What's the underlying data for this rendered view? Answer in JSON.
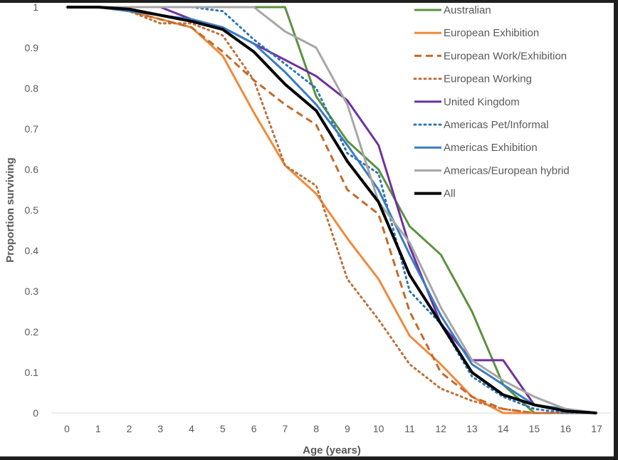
{
  "chart_data": {
    "type": "line",
    "title": "",
    "xlabel": "Age (years)",
    "ylabel": "Proportion surviving",
    "xlim": [
      0,
      17
    ],
    "ylim": [
      0,
      1
    ],
    "x": [
      0,
      1,
      2,
      3,
      4,
      5,
      6,
      7,
      8,
      9,
      10,
      11,
      12,
      13,
      14,
      15,
      16,
      17
    ],
    "x_ticks": [
      "0",
      "1",
      "2",
      "3",
      "4",
      "5",
      "6",
      "7",
      "8",
      "9",
      "10",
      "11",
      "12",
      "13",
      "14",
      "15",
      "16",
      "17"
    ],
    "y_ticks": [
      "0",
      "0.1",
      "0.2",
      "0.3",
      "0.4",
      "0.5",
      "0.6",
      "0.7",
      "0.8",
      "0.9",
      "1"
    ],
    "grid": false,
    "legend_position": "top-right",
    "series": [
      {
        "name": "Australian",
        "color": "#5b9240",
        "style": "solid",
        "values": [
          1,
          1,
          1,
          1,
          1,
          1,
          1,
          1,
          0.78,
          0.67,
          0.6,
          0.46,
          0.39,
          0.25,
          0.07,
          0,
          0,
          0
        ]
      },
      {
        "name": "European Exhibition",
        "color": "#f08a3c",
        "style": "solid",
        "values": [
          1,
          1,
          0.99,
          0.97,
          0.95,
          0.88,
          0.74,
          0.61,
          0.54,
          0.43,
          0.33,
          0.19,
          0.12,
          0.04,
          0,
          0,
          0,
          0
        ]
      },
      {
        "name": "European Work/Exhibition",
        "color": "#c46a2a",
        "style": "dashed",
        "values": [
          1,
          1,
          0.99,
          0.97,
          0.95,
          0.89,
          0.82,
          0.76,
          0.71,
          0.55,
          0.49,
          0.25,
          0.1,
          0.04,
          0.01,
          0,
          0,
          0
        ]
      },
      {
        "name": "European Working",
        "color": "#c0703a",
        "style": "dotted",
        "values": [
          1,
          1,
          0.99,
          0.96,
          0.96,
          0.93,
          0.82,
          0.61,
          0.56,
          0.33,
          0.23,
          0.12,
          0.06,
          0.03,
          0.01,
          0,
          0,
          0
        ]
      },
      {
        "name": "United Kingdom",
        "color": "#7030a0",
        "style": "solid",
        "values": [
          1,
          1,
          1,
          1,
          0.97,
          0.95,
          0.91,
          0.87,
          0.83,
          0.77,
          0.66,
          0.41,
          0.22,
          0.13,
          0.13,
          0.02,
          0.01,
          0
        ]
      },
      {
        "name": "Americas Pet/Informal",
        "color": "#2e75b6",
        "style": "dotted",
        "values": [
          1,
          1,
          1,
          1,
          1,
          0.99,
          0.92,
          0.86,
          0.8,
          0.64,
          0.59,
          0.3,
          0.22,
          0.09,
          0.04,
          0.01,
          0,
          0
        ]
      },
      {
        "name": "Americas Exhibition",
        "color": "#3a7dc0",
        "style": "solid",
        "values": [
          1,
          1,
          0.99,
          0.98,
          0.97,
          0.95,
          0.91,
          0.84,
          0.76,
          0.66,
          0.55,
          0.39,
          0.24,
          0.12,
          0.07,
          0.02,
          0.01,
          0
        ]
      },
      {
        "name": "Americas/European hybrid",
        "color": "#a6a6a6",
        "style": "solid",
        "values": [
          1,
          1,
          1,
          1,
          1,
          1,
          1,
          0.94,
          0.9,
          0.76,
          0.52,
          0.42,
          0.26,
          0.13,
          0.08,
          0.04,
          0.01,
          0
        ]
      },
      {
        "name": "All",
        "color": "#000000",
        "style": "solid",
        "values": [
          1,
          1,
          0.995,
          0.98,
          0.965,
          0.945,
          0.89,
          0.81,
          0.745,
          0.62,
          0.52,
          0.34,
          0.22,
          0.1,
          0.045,
          0.02,
          0.005,
          0
        ]
      }
    ]
  }
}
